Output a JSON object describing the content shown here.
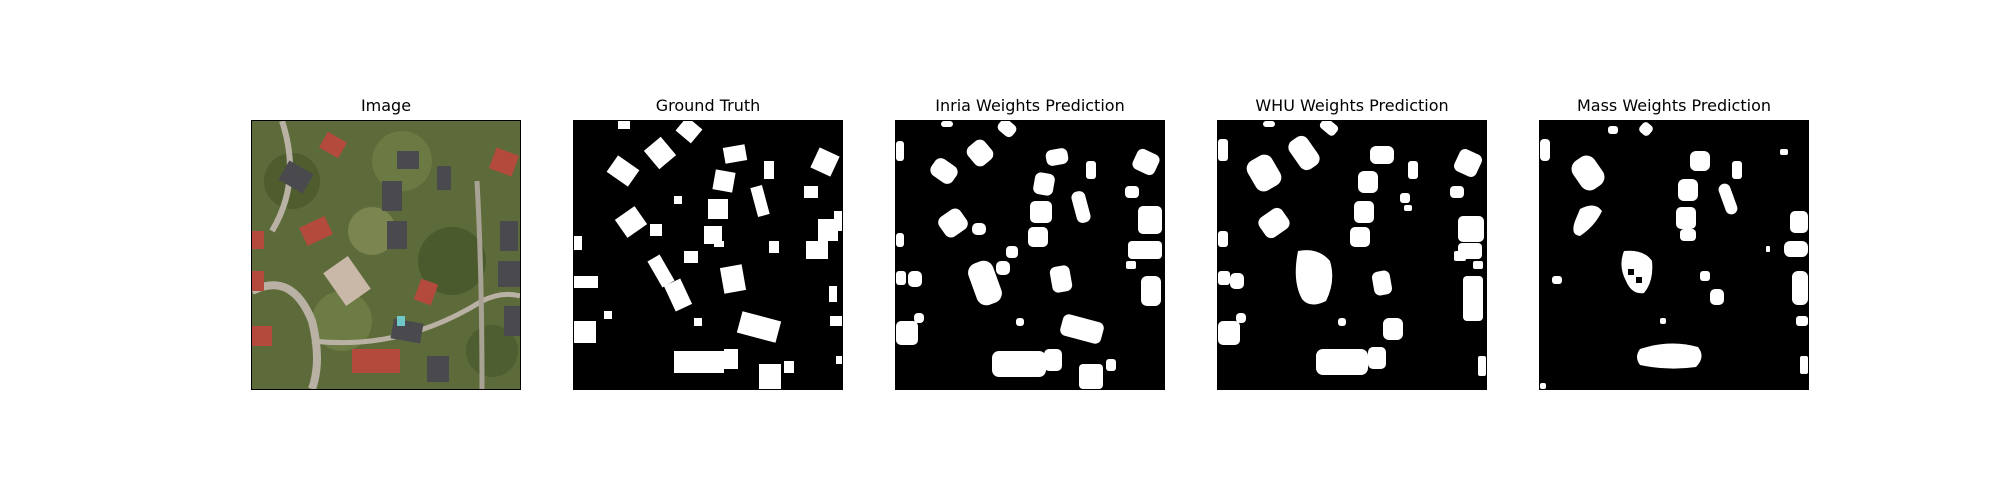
{
  "figure": {
    "panels": [
      {
        "title": "Image",
        "kind": "aerial-photo"
      },
      {
        "title": "Ground Truth",
        "kind": "mask"
      },
      {
        "title": "Inria Weights Prediction",
        "kind": "mask"
      },
      {
        "title": "WHU Weights Prediction",
        "kind": "mask"
      },
      {
        "title": "Mass Weights Prediction",
        "kind": "mask"
      }
    ],
    "colors": {
      "mask_background": "#000000",
      "mask_foreground": "#ffffff",
      "vegetation": "#5d6b3a",
      "roof_red": "#b44a3c",
      "roof_dark": "#4a4a4e",
      "road": "#b9b2a4"
    }
  }
}
